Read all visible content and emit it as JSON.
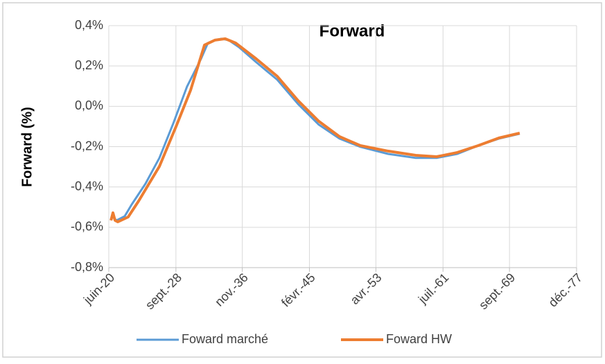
{
  "chart_data": {
    "type": "line",
    "title": "Forward",
    "y_label": "Forward (%)",
    "xlim": [
      2020.42,
      2077.92
    ],
    "xticks": [
      {
        "value": 2020.42,
        "label": "juin-20"
      },
      {
        "value": 2028.67,
        "label": "sept.-28"
      },
      {
        "value": 2036.83,
        "label": "nov.-36"
      },
      {
        "value": 2045.08,
        "label": "févr.-45"
      },
      {
        "value": 2053.25,
        "label": "avr.-53"
      },
      {
        "value": 2061.5,
        "label": "juil.-61"
      },
      {
        "value": 2069.67,
        "label": "sept.-69"
      },
      {
        "value": 2077.92,
        "label": "déc.-77"
      }
    ],
    "ylim": [
      -0.8,
      0.4
    ],
    "yticks": [
      {
        "value": -0.8,
        "label": "-0,8%"
      },
      {
        "value": -0.6,
        "label": "-0,6%"
      },
      {
        "value": -0.4,
        "label": "-0,4%"
      },
      {
        "value": -0.2,
        "label": "-0,2%"
      },
      {
        "value": 0,
        "label": "0,0%"
      },
      {
        "value": 0.2,
        "label": "0,2%"
      },
      {
        "value": 0.4,
        "label": "0,4%"
      }
    ],
    "grid": true,
    "series": [
      {
        "name": "Foward marché",
        "color": "#5b9bd5",
        "x": [
          2020.85,
          2021.36,
          2022.38,
          2023.23,
          2024.93,
          2026.64,
          2028.34,
          2030.04,
          2031.75,
          2032.6,
          2033.45,
          2034.3,
          2035.16,
          2036.43,
          2038.56,
          2041.12,
          2043.67,
          2046.23,
          2048.78,
          2051.34,
          2054.75,
          2058.15,
          2060.71,
          2063.26,
          2065.82,
          2068.37,
          2070.93
        ],
        "values": [
          -0.545,
          -0.566,
          -0.545,
          -0.487,
          -0.384,
          -0.256,
          -0.085,
          0.098,
          0.235,
          0.314,
          0.328,
          0.335,
          0.328,
          0.293,
          0.218,
          0.132,
          0.012,
          -0.091,
          -0.16,
          -0.201,
          -0.236,
          -0.256,
          -0.256,
          -0.236,
          -0.195,
          -0.16,
          -0.136
        ]
      },
      {
        "name": "Foward HW",
        "color": "#ed7d31",
        "x": [
          2020.68,
          2020.93,
          2021.19,
          2021.53,
          2022.8,
          2024.08,
          2026.64,
          2028.77,
          2030.47,
          2032.18,
          2033.45,
          2034.73,
          2036.01,
          2038.56,
          2041.12,
          2043.67,
          2046.23,
          2048.78,
          2051.34,
          2054.75,
          2058.15,
          2060.71,
          2063.26,
          2065.82,
          2068.37,
          2070.93
        ],
        "values": [
          -0.566,
          -0.528,
          -0.566,
          -0.573,
          -0.549,
          -0.47,
          -0.298,
          -0.092,
          0.08,
          0.304,
          0.328,
          0.335,
          0.314,
          0.235,
          0.149,
          0.029,
          -0.074,
          -0.15,
          -0.195,
          -0.222,
          -0.243,
          -0.25,
          -0.229,
          -0.195,
          -0.157,
          -0.133
        ]
      }
    ]
  }
}
